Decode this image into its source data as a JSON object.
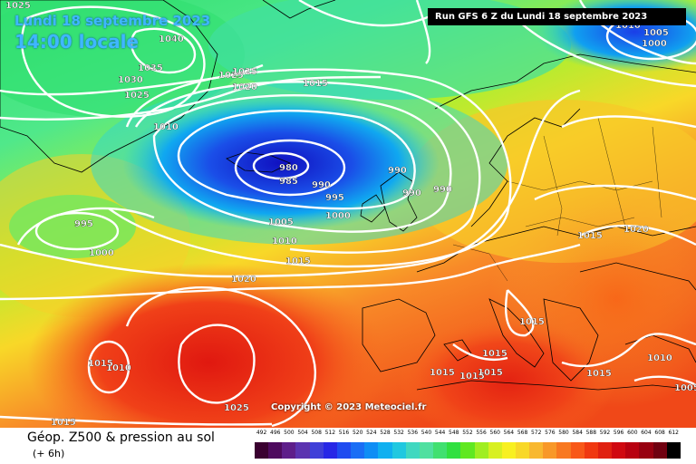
{
  "header": {
    "date": "Lundi 18 septembre 2023",
    "time": "14:00 locale",
    "run": "Run GFS 6 Z du Lundi 18 septembre 2023"
  },
  "copyright": "Copyright © 2023 Meteociel.fr",
  "footer": {
    "title": "Géop. Z500 & pression au sol",
    "subtitle": "(+ 6h)"
  },
  "legend": {
    "values": [
      "492",
      "496",
      "500",
      "504",
      "508",
      "512",
      "516",
      "520",
      "524",
      "528",
      "532",
      "536",
      "540",
      "544",
      "548",
      "552",
      "556",
      "560",
      "564",
      "568",
      "572",
      "576",
      "580",
      "584",
      "588",
      "592",
      "596",
      "600",
      "604",
      "608",
      "612"
    ],
    "colors": [
      "#3a0030",
      "#4e0a5e",
      "#5e1e8a",
      "#5b33b0",
      "#3f3fd8",
      "#2727e6",
      "#1f4cf0",
      "#1a6ef5",
      "#0f8ef5",
      "#10b0f0",
      "#20c8e0",
      "#40d8c0",
      "#50e0a0",
      "#40e070",
      "#30e040",
      "#60e820",
      "#a0ee20",
      "#d8f020",
      "#f8f020",
      "#f8d828",
      "#f8b830",
      "#f89828",
      "#f87820",
      "#f85818",
      "#f03810",
      "#e02010",
      "#d00810",
      "#b80010",
      "#980010",
      "#700010",
      "#000000"
    ]
  },
  "isobar_labels": [
    {
      "name": "isobar-label-1025-topleft",
      "text": "1025"
    },
    {
      "name": "isobar-label-1040",
      "text": "1040"
    },
    {
      "name": "isobar-label-1035",
      "text": "1035"
    },
    {
      "name": "isobar-label-1030",
      "text": "1030"
    },
    {
      "name": "isobar-label-1025-a",
      "text": "1025"
    },
    {
      "name": "isobar-label-1025-b",
      "text": "1025"
    },
    {
      "name": "isobar-label-1025-c",
      "text": "1025"
    },
    {
      "name": "isobar-label-1020-a",
      "text": "1020"
    },
    {
      "name": "isobar-label-1015-a",
      "text": "1015"
    },
    {
      "name": "isobar-label-1010-a",
      "text": "1010"
    },
    {
      "name": "isobar-label-980",
      "text": "980"
    },
    {
      "name": "isobar-label-985",
      "text": "985"
    },
    {
      "name": "isobar-label-990-a",
      "text": "990"
    },
    {
      "name": "isobar-label-990-b",
      "text": "990"
    },
    {
      "name": "isobar-label-990-c",
      "text": "990"
    },
    {
      "name": "isobar-label-990-d",
      "text": "990"
    },
    {
      "name": "isobar-label-995-a",
      "text": "995"
    },
    {
      "name": "isobar-label-995-b",
      "text": "995"
    },
    {
      "name": "isobar-label-1000-a",
      "text": "1000"
    },
    {
      "name": "isobar-label-1000-b",
      "text": "1000"
    },
    {
      "name": "isobar-label-1005-a",
      "text": "1005"
    },
    {
      "name": "isobar-label-1010-b",
      "text": "1010"
    },
    {
      "name": "isobar-label-1015-b",
      "text": "1015"
    },
    {
      "name": "isobar-label-1020-b",
      "text": "1020"
    },
    {
      "name": "isobar-label-1015-c",
      "text": "1015"
    },
    {
      "name": "isobar-label-1010-c",
      "text": "1010"
    },
    {
      "name": "isobar-label-1025-d",
      "text": "1025"
    },
    {
      "name": "isobar-label-1015-d",
      "text": "1015"
    },
    {
      "name": "isobar-label-1010-ne",
      "text": "1010"
    },
    {
      "name": "isobar-label-1005-ne",
      "text": "1005"
    },
    {
      "name": "isobar-label-1000-ne",
      "text": "1000"
    },
    {
      "name": "isobar-label-1020-e",
      "text": "1020"
    },
    {
      "name": "isobar-label-1015-e",
      "text": "1015"
    },
    {
      "name": "isobar-label-1015-f",
      "text": "1015"
    },
    {
      "name": "isobar-label-1015-g",
      "text": "1015"
    },
    {
      "name": "isobar-label-1015-h",
      "text": "1015"
    },
    {
      "name": "isobar-label-1015-i",
      "text": "1015"
    },
    {
      "name": "isobar-label-1015-j",
      "text": "1015"
    },
    {
      "name": "isobar-label-1015-k",
      "text": "1015"
    },
    {
      "name": "isobar-label-1010-e",
      "text": "1010"
    },
    {
      "name": "isobar-label-1005-e",
      "text": "1005"
    }
  ]
}
